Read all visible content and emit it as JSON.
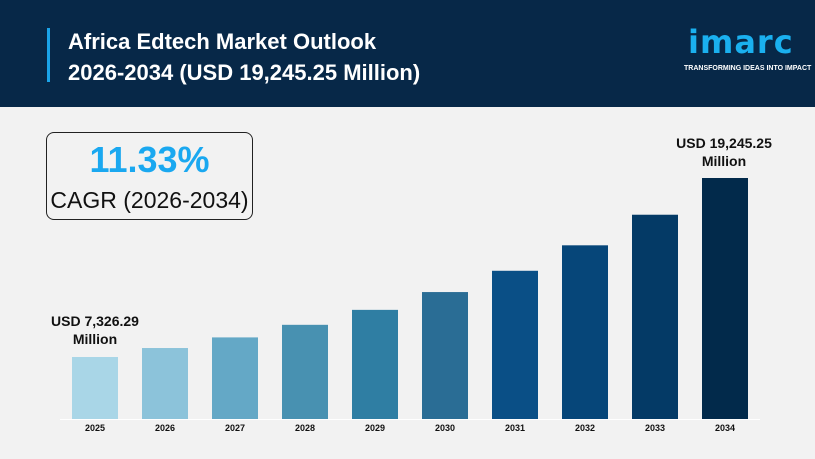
{
  "header": {
    "title_line1": "Africa Edtech Market Outlook",
    "title_line2": "2026-2034 (USD 19,245.25 Million)"
  },
  "logo": {
    "word": "imarc",
    "tagline": "TRANSFORMING IDEAS INTO IMPACT"
  },
  "cagr": {
    "value": "11.33%",
    "label": "CAGR (2026-2034)"
  },
  "chart_data": {
    "type": "bar",
    "title": "",
    "categories": [
      "2025",
      "2026",
      "2027",
      "2028",
      "2029",
      "2030",
      "2031",
      "2032",
      "2033",
      "2034"
    ],
    "values": [
      7326.29,
      8156,
      9080,
      10109,
      11255,
      12530,
      13950,
      15530,
      17290,
      19245.25
    ],
    "colors": [
      "#a9d6e7",
      "#8cc3da",
      "#64a8c6",
      "#4891b1",
      "#2f7ea3",
      "#2a6d95",
      "#0a4f86",
      "#064679",
      "#043a66",
      "#022a4b"
    ],
    "annotations": [
      {
        "line1": "USD 7,326.29",
        "line2": "Million"
      },
      {
        "line1": "USD 19,245.25",
        "line2": "Million"
      }
    ],
    "grid": false,
    "xlabel": "",
    "ylabel": ""
  }
}
